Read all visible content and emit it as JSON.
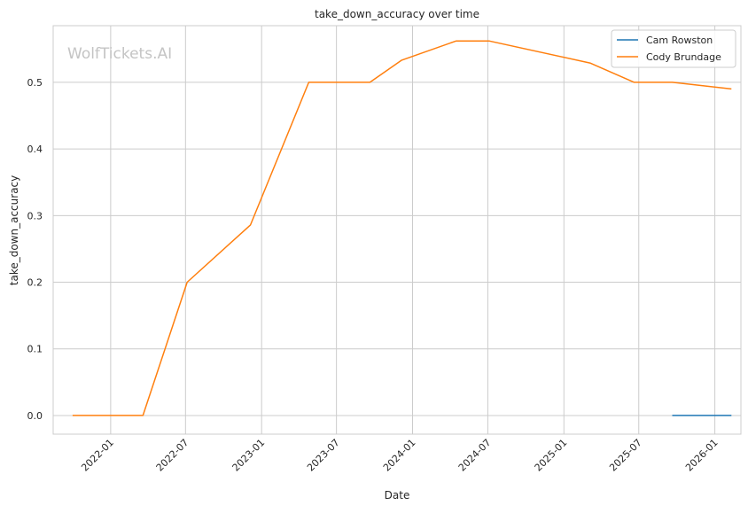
{
  "chart_data": {
    "type": "line",
    "title": "take_down_accuracy over time",
    "xlabel": "Date",
    "ylabel": "take_down_accuracy",
    "watermark": "WolfTickets.AI",
    "xlim": [
      "2021-08-15",
      "2026-03-05"
    ],
    "ylim": [
      -0.028,
      0.585
    ],
    "x_ticks": [
      "2022-01",
      "2022-07",
      "2023-01",
      "2023-07",
      "2024-01",
      "2024-07",
      "2025-01",
      "2025-07",
      "2026-01"
    ],
    "y_ticks": [
      "0.0",
      "0.1",
      "0.2",
      "0.3",
      "0.4",
      "0.5"
    ],
    "grid": true,
    "legend_position": "top-right",
    "series": [
      {
        "name": "Cam Rowston",
        "color": "#1f77b4",
        "points": [
          {
            "x": "2025-09-20",
            "y": 0.0
          },
          {
            "x": "2026-02-10",
            "y": 0.0
          }
        ]
      },
      {
        "name": "Cody Brundage",
        "color": "#ff7f0e",
        "points": [
          {
            "x": "2021-10-01",
            "y": 0.0
          },
          {
            "x": "2022-03-20",
            "y": 0.0
          },
          {
            "x": "2022-07-05",
            "y": 0.2
          },
          {
            "x": "2022-12-05",
            "y": 0.286
          },
          {
            "x": "2023-04-25",
            "y": 0.5
          },
          {
            "x": "2023-09-20",
            "y": 0.5
          },
          {
            "x": "2023-12-05",
            "y": 0.533
          },
          {
            "x": "2024-04-15",
            "y": 0.562
          },
          {
            "x": "2024-07-05",
            "y": 0.562
          },
          {
            "x": "2025-03-05",
            "y": 0.529
          },
          {
            "x": "2025-06-20",
            "y": 0.5
          },
          {
            "x": "2025-09-20",
            "y": 0.5
          },
          {
            "x": "2026-02-10",
            "y": 0.49
          }
        ]
      }
    ]
  }
}
